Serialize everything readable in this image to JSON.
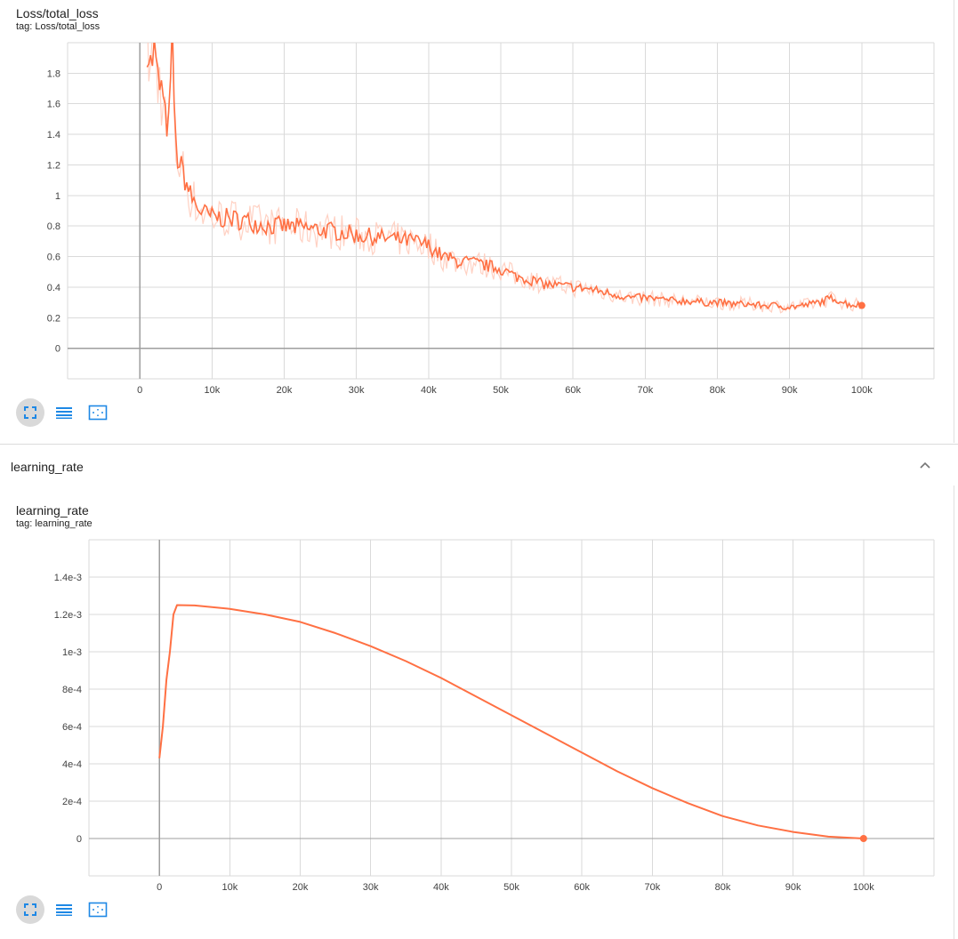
{
  "cards": [
    {
      "title": "Loss/total_loss",
      "tag": "tag: Loss/total_loss"
    },
    {
      "title": "learning_rate",
      "tag": "tag: learning_rate"
    }
  ],
  "group": {
    "title": "learning_rate",
    "collapse_icon": "chevron-up-icon"
  },
  "toolbar": {
    "icons": [
      "fullscreen-icon",
      "list-icon",
      "fit-domain-icon"
    ]
  },
  "colors": {
    "series": "#ff7043",
    "series_raw": "#ffccbc",
    "grid": "#dadada",
    "axis": "#9e9e9e"
  },
  "chart_data": [
    {
      "type": "line",
      "title": "Loss/total_loss",
      "xlabel": "",
      "ylabel": "",
      "xlim": [
        -10000,
        110000
      ],
      "ylim": [
        -0.2,
        2.0
      ],
      "x_ticks": [
        0,
        10000,
        20000,
        30000,
        40000,
        50000,
        60000,
        70000,
        80000,
        90000,
        100000
      ],
      "x_tick_labels": [
        "0",
        "10k",
        "20k",
        "30k",
        "40k",
        "50k",
        "60k",
        "70k",
        "80k",
        "90k",
        "100k"
      ],
      "y_ticks": [
        0,
        0.2,
        0.4,
        0.6,
        0.8,
        1.0,
        1.2,
        1.4,
        1.6,
        1.8
      ],
      "y_tick_labels": [
        "0",
        "0.2",
        "0.4",
        "0.6",
        "0.8",
        "1",
        "1.2",
        "1.4",
        "1.6",
        "1.8"
      ],
      "grid": true,
      "series": [
        {
          "x": [
            1000,
            1500,
            2000,
            2500,
            3000,
            3500,
            4000,
            4500,
            5000,
            5500,
            6000,
            7000,
            8000,
            9000,
            10000,
            12000,
            14000,
            16000,
            18000,
            20000,
            22000,
            24000,
            26000,
            28000,
            30000,
            32000,
            34000,
            36000,
            38000,
            40000,
            42000,
            44000,
            46000,
            48000,
            50000,
            52000,
            54000,
            56000,
            58000,
            60000,
            62000,
            64000,
            66000,
            68000,
            70000,
            72000,
            74000,
            76000,
            78000,
            80000,
            82000,
            84000,
            86000,
            88000,
            90000,
            92000,
            94000,
            96000,
            98000,
            100000
          ],
          "y": [
            2.0,
            1.85,
            1.95,
            1.75,
            1.7,
            1.5,
            1.45,
            2.0,
            1.3,
            1.2,
            1.15,
            1.0,
            0.92,
            0.88,
            0.86,
            0.85,
            0.84,
            0.82,
            0.8,
            0.8,
            0.79,
            0.78,
            0.77,
            0.76,
            0.74,
            0.73,
            0.72,
            0.71,
            0.7,
            0.67,
            0.6,
            0.57,
            0.56,
            0.54,
            0.52,
            0.47,
            0.45,
            0.42,
            0.41,
            0.4,
            0.39,
            0.37,
            0.35,
            0.33,
            0.33,
            0.32,
            0.31,
            0.31,
            0.3,
            0.3,
            0.29,
            0.29,
            0.28,
            0.28,
            0.27,
            0.28,
            0.3,
            0.33,
            0.29,
            0.28
          ]
        }
      ],
      "last_point": [
        100000,
        0.28
      ]
    },
    {
      "type": "line",
      "title": "learning_rate",
      "xlabel": "",
      "ylabel": "",
      "xlim": [
        -10000,
        110000
      ],
      "ylim": [
        -0.0002,
        0.0016
      ],
      "x_ticks": [
        0,
        10000,
        20000,
        30000,
        40000,
        50000,
        60000,
        70000,
        80000,
        90000,
        100000
      ],
      "x_tick_labels": [
        "0",
        "10k",
        "20k",
        "30k",
        "40k",
        "50k",
        "60k",
        "70k",
        "80k",
        "90k",
        "100k"
      ],
      "y_ticks": [
        0,
        0.0002,
        0.0004,
        0.0006,
        0.0008,
        0.001,
        0.0012,
        0.0014
      ],
      "y_tick_labels": [
        "0",
        "2e-4",
        "4e-4",
        "6e-4",
        "8e-4",
        "1e-3",
        "1.2e-3",
        "1.4e-3"
      ],
      "grid": true,
      "series": [
        {
          "x": [
            0,
            500,
            1000,
            1500,
            2000,
            2500,
            5000,
            10000,
            15000,
            20000,
            25000,
            30000,
            35000,
            40000,
            45000,
            50000,
            55000,
            60000,
            65000,
            70000,
            75000,
            80000,
            85000,
            90000,
            95000,
            100000
          ],
          "y": [
            0.00043,
            0.0006,
            0.00085,
            0.001,
            0.0012,
            0.00125,
            0.001248,
            0.00123,
            0.0012,
            0.00116,
            0.0011,
            0.00103,
            0.00095,
            0.00086,
            0.00076,
            0.00066,
            0.00056,
            0.00046,
            0.00036,
            0.00027,
            0.00019,
            0.00012,
            7e-05,
            3.5e-05,
            1e-05,
            0.0
          ]
        }
      ],
      "last_point": [
        100000,
        0.0
      ]
    }
  ]
}
